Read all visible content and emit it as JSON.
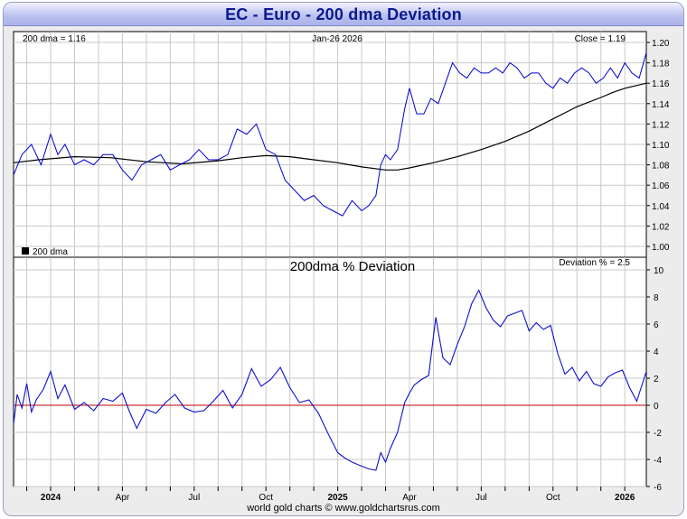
{
  "title": "EC  -  Euro - 200 dma Deviation",
  "footer": "world gold charts © www.goldchartsrus.com",
  "colors": {
    "price": "#0000cc",
    "dma": "#000000",
    "deviation": "#1010cc",
    "zero_line": "#c00000",
    "grid": "#c8c8c8"
  },
  "chart_data": [
    {
      "type": "line",
      "panel": "price",
      "header_left": "200 dma =    1.16",
      "header_center": "Jan-26  2026",
      "header_right": "Close = 1.19",
      "legend": "200 dma",
      "ylim": [
        1.0,
        1.2
      ],
      "yticks": [
        "1.00",
        "1.02",
        "1.04",
        "1.06",
        "1.08",
        "1.10",
        "1.12",
        "1.14",
        "1.16",
        "1.18",
        "1.20"
      ],
      "x_labels": [
        "2024",
        "Apr",
        "Jul",
        "Oct",
        "2025",
        "Apr",
        "Jul",
        "Oct",
        "2026"
      ],
      "x_label_months": [
        2,
        5,
        8,
        11,
        14,
        17,
        20,
        23,
        26
      ],
      "x_range_months": [
        0.45,
        26.9
      ],
      "series": [
        {
          "name": "Close",
          "x": [
            0.45,
            0.8,
            1.2,
            1.6,
            2.0,
            2.3,
            2.6,
            3.0,
            3.4,
            3.8,
            4.2,
            4.6,
            5.0,
            5.4,
            5.8,
            6.2,
            6.6,
            7.0,
            7.4,
            7.8,
            8.2,
            8.6,
            9.0,
            9.4,
            9.8,
            10.2,
            10.6,
            11.0,
            11.4,
            11.8,
            12.2,
            12.6,
            13.0,
            13.4,
            13.8,
            14.2,
            14.6,
            15.0,
            15.3,
            15.6,
            15.8,
            16.0,
            16.2,
            16.5,
            16.8,
            17.0,
            17.3,
            17.6,
            17.9,
            18.2,
            18.5,
            18.8,
            19.1,
            19.4,
            19.7,
            20.0,
            20.3,
            20.6,
            20.9,
            21.2,
            21.5,
            21.8,
            22.1,
            22.4,
            22.7,
            23.0,
            23.3,
            23.6,
            23.9,
            24.2,
            24.5,
            24.8,
            25.1,
            25.4,
            25.7,
            26.0,
            26.3,
            26.6,
            26.9
          ],
          "values": [
            1.07,
            1.09,
            1.1,
            1.08,
            1.11,
            1.09,
            1.1,
            1.08,
            1.085,
            1.08,
            1.09,
            1.09,
            1.075,
            1.065,
            1.08,
            1.085,
            1.09,
            1.075,
            1.08,
            1.085,
            1.095,
            1.085,
            1.085,
            1.09,
            1.115,
            1.11,
            1.12,
            1.095,
            1.09,
            1.065,
            1.055,
            1.045,
            1.05,
            1.04,
            1.035,
            1.03,
            1.045,
            1.035,
            1.04,
            1.05,
            1.08,
            1.09,
            1.085,
            1.095,
            1.135,
            1.155,
            1.13,
            1.13,
            1.145,
            1.14,
            1.16,
            1.18,
            1.17,
            1.165,
            1.175,
            1.17,
            1.17,
            1.175,
            1.17,
            1.18,
            1.175,
            1.165,
            1.17,
            1.17,
            1.16,
            1.155,
            1.165,
            1.16,
            1.17,
            1.175,
            1.17,
            1.16,
            1.165,
            1.175,
            1.165,
            1.18,
            1.17,
            1.165,
            1.19
          ]
        },
        {
          "name": "200 dma",
          "x": [
            0.45,
            1.5,
            3.0,
            4.5,
            6.0,
            7.5,
            9.0,
            10.0,
            11.0,
            12.0,
            13.0,
            14.0,
            15.0,
            16.0,
            16.5,
            17.0,
            18.0,
            19.0,
            20.0,
            21.0,
            22.0,
            23.0,
            24.0,
            25.0,
            25.5,
            26.0,
            26.9
          ],
          "values": [
            1.082,
            1.085,
            1.088,
            1.087,
            1.083,
            1.081,
            1.084,
            1.087,
            1.089,
            1.088,
            1.085,
            1.082,
            1.078,
            1.075,
            1.075,
            1.077,
            1.082,
            1.088,
            1.095,
            1.103,
            1.113,
            1.125,
            1.137,
            1.146,
            1.151,
            1.155,
            1.16
          ]
        }
      ]
    },
    {
      "type": "line",
      "panel": "deviation",
      "title": "200dma  %  Deviation",
      "header_right": "Deviation % = 2.5",
      "ylim": [
        -6,
        10
      ],
      "yticks": [
        "-6",
        "-4",
        "-2",
        "0",
        "2",
        "4",
        "6",
        "8",
        "10"
      ],
      "x_labels": [
        "2024",
        "Apr",
        "Jul",
        "Oct",
        "2025",
        "Apr",
        "Jul",
        "Oct",
        "2026"
      ],
      "x_label_months": [
        2,
        5,
        8,
        11,
        14,
        17,
        20,
        23,
        26
      ],
      "x_range_months": [
        0.45,
        26.9
      ],
      "series": [
        {
          "name": "Deviation %",
          "x": [
            0.45,
            0.6,
            0.8,
            1.0,
            1.2,
            1.4,
            1.7,
            2.0,
            2.3,
            2.6,
            3.0,
            3.4,
            3.8,
            4.2,
            4.6,
            5.0,
            5.3,
            5.6,
            6.0,
            6.4,
            6.8,
            7.2,
            7.6,
            8.0,
            8.4,
            8.8,
            9.2,
            9.6,
            10.0,
            10.4,
            10.8,
            11.2,
            11.6,
            12.0,
            12.4,
            12.8,
            13.2,
            13.6,
            14.0,
            14.3,
            14.6,
            15.0,
            15.3,
            15.6,
            15.8,
            16.0,
            16.2,
            16.5,
            16.8,
            17.0,
            17.2,
            17.5,
            17.8,
            18.1,
            18.4,
            18.7,
            19.0,
            19.3,
            19.6,
            19.9,
            20.2,
            20.5,
            20.8,
            21.1,
            21.4,
            21.7,
            22.0,
            22.3,
            22.6,
            22.9,
            23.2,
            23.5,
            23.8,
            24.1,
            24.4,
            24.7,
            25.0,
            25.3,
            25.6,
            25.9,
            26.2,
            26.5,
            26.9
          ],
          "values": [
            -1.4,
            0.8,
            -0.2,
            1.6,
            -0.5,
            0.4,
            1.2,
            2.5,
            0.5,
            1.5,
            -0.3,
            0.2,
            -0.4,
            0.5,
            0.3,
            0.9,
            -0.5,
            -1.7,
            -0.3,
            -0.6,
            0.2,
            0.8,
            -0.2,
            -0.5,
            -0.4,
            0.3,
            1.1,
            -0.2,
            0.8,
            2.7,
            1.4,
            1.9,
            2.8,
            1.3,
            0.2,
            0.4,
            -0.6,
            -2.1,
            -3.5,
            -3.9,
            -4.2,
            -4.5,
            -4.7,
            -4.8,
            -3.5,
            -4.2,
            -3.2,
            -2.0,
            0.2,
            0.9,
            1.5,
            1.9,
            2.2,
            6.5,
            3.5,
            3.0,
            4.5,
            5.8,
            7.5,
            8.5,
            7.2,
            6.3,
            5.8,
            6.6,
            6.8,
            7.0,
            5.5,
            6.1,
            5.6,
            5.9,
            3.8,
            2.3,
            2.8,
            1.8,
            2.5,
            1.6,
            1.4,
            2.1,
            2.4,
            2.6,
            1.3,
            0.3,
            2.5
          ]
        }
      ]
    }
  ]
}
